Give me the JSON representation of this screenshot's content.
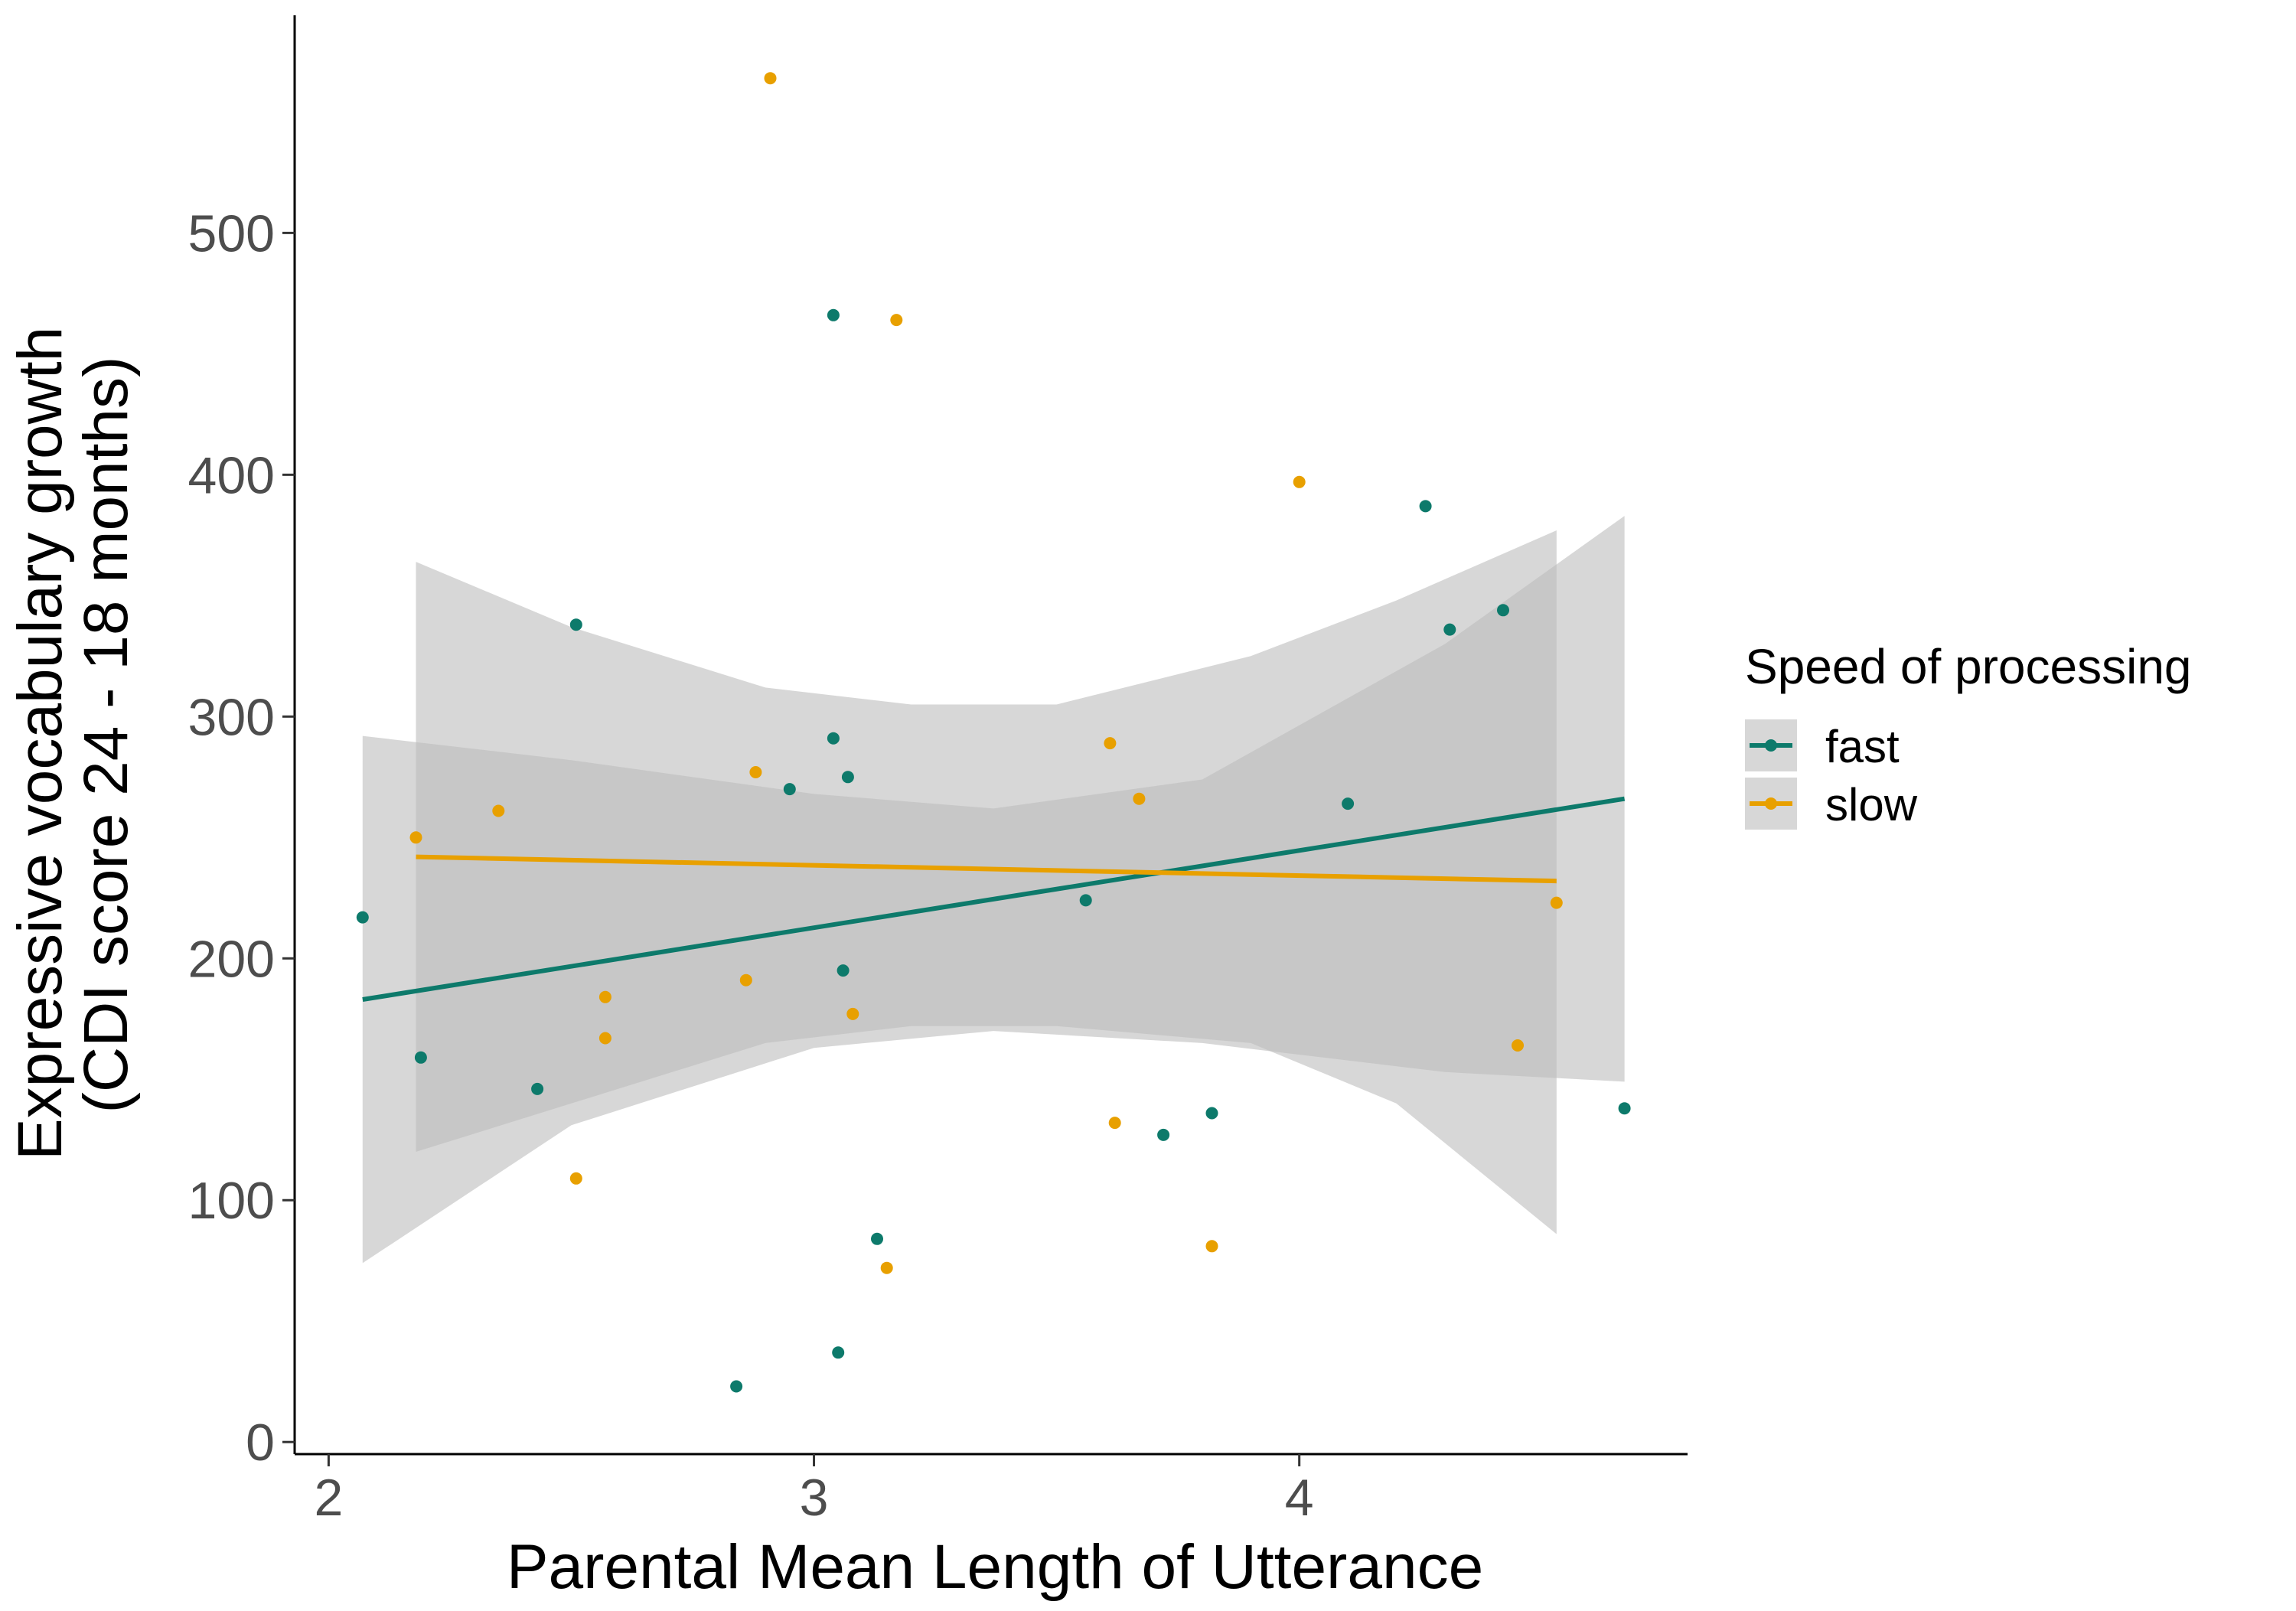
{
  "chart_data": {
    "type": "scatter",
    "xlabel": "Parental Mean Length of Utterance",
    "ylabel_line1": "Expressive vocabulary growth",
    "ylabel_line2": "(CDI score 24 - 18 months)",
    "xlim": [
      1.93,
      4.8
    ],
    "ylim": [
      -5,
      590
    ],
    "x_ticks": [
      2,
      3,
      4
    ],
    "y_ticks": [
      0,
      100,
      200,
      300,
      400,
      500
    ],
    "grid": false,
    "legend": {
      "title": "Speed of processing",
      "placement": "right",
      "entries": [
        "fast",
        "slow"
      ]
    },
    "colors": {
      "fast": "#0d7a6b",
      "slow": "#e8a000",
      "ribbon": "#bdbdbd"
    },
    "series": [
      {
        "name": "fast",
        "points": [
          [
            2.07,
            217
          ],
          [
            2.19,
            159
          ],
          [
            2.43,
            146
          ],
          [
            2.51,
            338
          ],
          [
            2.84,
            23
          ],
          [
            2.95,
            270
          ],
          [
            3.04,
            291
          ],
          [
            3.04,
            466
          ],
          [
            3.05,
            37
          ],
          [
            3.06,
            195
          ],
          [
            3.07,
            275
          ],
          [
            3.13,
            84
          ],
          [
            3.56,
            224
          ],
          [
            3.72,
            127
          ],
          [
            3.82,
            136
          ],
          [
            4.1,
            264
          ],
          [
            4.26,
            387
          ],
          [
            4.31,
            336
          ],
          [
            4.42,
            344
          ],
          [
            4.67,
            138
          ]
        ],
        "fit": {
          "x": [
            2.07,
            4.67
          ],
          "y": [
            183,
            266
          ]
        },
        "ribbon": {
          "x": [
            2.07,
            2.5,
            3.0,
            3.37,
            3.8,
            4.3,
            4.67
          ],
          "lower": [
            74,
            131,
            163,
            170,
            165,
            153,
            149
          ],
          "upper": [
            292,
            282,
            268,
            262,
            274,
            330,
            383
          ]
        }
      },
      {
        "name": "slow",
        "points": [
          [
            2.18,
            250
          ],
          [
            2.35,
            261
          ],
          [
            2.51,
            109
          ],
          [
            2.57,
            167
          ],
          [
            2.57,
            184
          ],
          [
            2.86,
            191
          ],
          [
            2.88,
            277
          ],
          [
            2.91,
            564
          ],
          [
            3.08,
            177
          ],
          [
            3.15,
            72
          ],
          [
            3.17,
            464
          ],
          [
            3.61,
            289
          ],
          [
            3.62,
            132
          ],
          [
            3.67,
            266
          ],
          [
            3.82,
            81
          ],
          [
            4.0,
            397
          ],
          [
            4.45,
            164
          ],
          [
            4.53,
            223
          ]
        ],
        "fit": {
          "x": [
            2.18,
            4.53
          ],
          "y": [
            242,
            232
          ]
        },
        "ribbon": {
          "x": [
            2.18,
            2.5,
            2.9,
            3.2,
            3.5,
            3.9,
            4.2,
            4.53
          ],
          "lower": [
            120,
            140,
            165,
            172,
            172,
            165,
            140,
            86
          ],
          "upper": [
            364,
            337,
            312,
            305,
            305,
            325,
            348,
            377
          ]
        }
      }
    ]
  }
}
